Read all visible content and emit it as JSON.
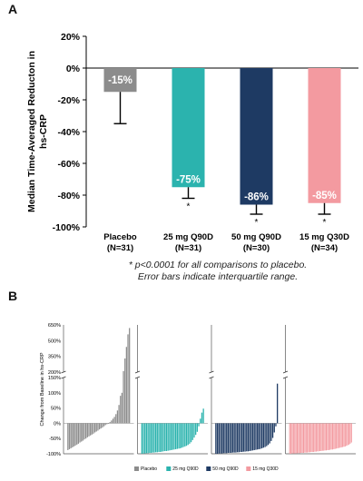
{
  "panels": {
    "a_letter": "A",
    "b_letter": "B"
  },
  "footnotes": {
    "line1": "* p<0.0001 for all comparisons to placebo.",
    "line2": "Error bars indicate interquartile range."
  },
  "colors": {
    "placebo": "#8c8c8c",
    "q90d_25": "#2bb3ae",
    "q90d_50": "#1e3a63",
    "q30d_15": "#f39aa0"
  },
  "chart_data": [
    {
      "type": "bar",
      "ylabel": "Median Time-Averaged Reducton in hs-CRP",
      "ylim": [
        -100,
        20
      ],
      "yticks": [
        "20%",
        "0%",
        "-20%",
        "-40%",
        "-60%",
        "-80%",
        "-100%"
      ],
      "grid": false,
      "categories": [
        {
          "line1": "Placebo",
          "line2": "(N=31)"
        },
        {
          "line1": "25 mg Q90D",
          "line2": "(N=31)"
        },
        {
          "line1": "50 mg Q90D",
          "line2": "(N=30)"
        },
        {
          "line1": "15 mg Q30D",
          "line2": "(N=34)"
        }
      ],
      "values": [
        -15,
        -75,
        -86,
        -85
      ],
      "value_labels": [
        "-15%",
        "-75%",
        "-86%",
        "-85%"
      ],
      "error_upper": [
        -15,
        -75,
        -86,
        -85
      ],
      "error_lower": [
        -35,
        -82,
        -92,
        -92
      ],
      "annotations": [
        "",
        "*",
        "*",
        "*"
      ]
    },
    {
      "type": "bar",
      "subtype": "waterfall",
      "ylabel": "Change from Baseline in hs-CRP",
      "yticks_upper": [
        "650%",
        "500%",
        "350%",
        "200%"
      ],
      "yticks_lower": [
        "150%",
        "100%",
        "50%",
        "0%",
        "-50%",
        "-100%"
      ],
      "legend_placement": "bottom",
      "legend": [
        "Placebo",
        "25 mg Q90D",
        "50 mg Q90D",
        "15 mg Q30D"
      ],
      "series": [
        {
          "values": [
            -88,
            -85,
            -82,
            -79,
            -76,
            -73,
            -70,
            -67,
            -63,
            -60,
            -57,
            -53,
            -50,
            -46,
            -43,
            -40,
            -37,
            -34,
            -30,
            -27,
            -24,
            -20,
            -17,
            -14,
            -10,
            -6,
            -3,
            0,
            4,
            9,
            15,
            21,
            30,
            42,
            60,
            90,
            100,
            210,
            330,
            440,
            560,
            620
          ]
        },
        {
          "values": [
            -100,
            -99,
            -99,
            -98,
            -98,
            -97,
            -97,
            -96,
            -96,
            -95,
            -95,
            -94,
            -94,
            -93,
            -92,
            -91,
            -91,
            -90,
            -89,
            -88,
            -87,
            -86,
            -85,
            -84,
            -83,
            -82,
            -80,
            -78,
            -76,
            -74,
            -71,
            -67,
            -62,
            -55,
            -47,
            -38,
            -28,
            -10,
            15,
            35,
            48
          ]
        },
        {
          "values": [
            -100,
            -100,
            -99,
            -99,
            -99,
            -98,
            -98,
            -98,
            -97,
            -97,
            -97,
            -96,
            -96,
            -96,
            -95,
            -95,
            -94,
            -94,
            -93,
            -93,
            -92,
            -92,
            -91,
            -90,
            -89,
            -88,
            -87,
            -86,
            -85,
            -84,
            -82,
            -80,
            -78,
            -75,
            -71,
            -66,
            -58,
            -48,
            -30,
            -10,
            130
          ]
        },
        {
          "values": [
            -100,
            -100,
            -99,
            -99,
            -99,
            -99,
            -98,
            -98,
            -98,
            -97,
            -97,
            -97,
            -96,
            -96,
            -96,
            -95,
            -95,
            -94,
            -94,
            -94,
            -93,
            -93,
            -92,
            -92,
            -91,
            -91,
            -90,
            -90,
            -89,
            -89,
            -88,
            -88,
            -87,
            -86,
            -86,
            -85,
            -84,
            -83,
            -82,
            -81,
            -80,
            -79,
            -78,
            -77,
            -76,
            -74,
            -72,
            -70,
            -67,
            -63
          ]
        }
      ]
    }
  ]
}
